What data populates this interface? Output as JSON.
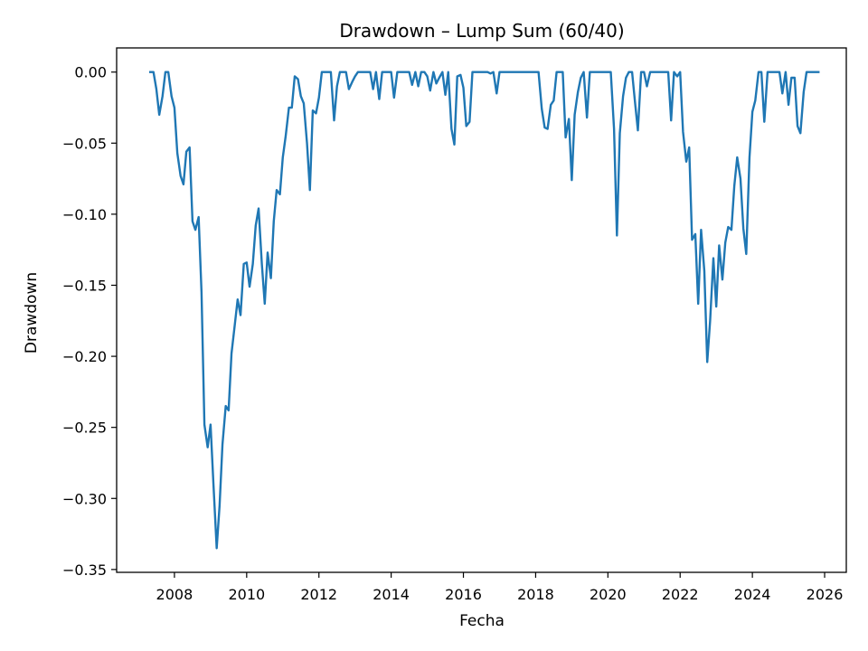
{
  "chart_data": {
    "type": "line",
    "title": "Drawdown – Lump Sum (60/40)",
    "xlabel": "Fecha",
    "ylabel": "Drawdown",
    "xlim": [
      2006.4,
      2026.6
    ],
    "ylim": [
      -0.352,
      0.017
    ],
    "xticks": [
      2008,
      2010,
      2012,
      2014,
      2016,
      2018,
      2020,
      2022,
      2024,
      2026
    ],
    "yticks": [
      0.0,
      -0.05,
      -0.1,
      -0.15,
      -0.2,
      -0.25,
      -0.3,
      -0.35
    ],
    "ytick_labels": [
      "0.00",
      "−0.05",
      "−0.10",
      "−0.15",
      "−0.20",
      "−0.25",
      "−0.30",
      "−0.35"
    ],
    "grid": false,
    "series": [
      {
        "color": "#1f77b4",
        "points": [
          [
            2007.33,
            0.0
          ],
          [
            2007.42,
            0.0
          ],
          [
            2007.5,
            -0.012
          ],
          [
            2007.58,
            -0.03
          ],
          [
            2007.67,
            -0.017
          ],
          [
            2007.75,
            0.0
          ],
          [
            2007.83,
            0.0
          ],
          [
            2007.92,
            -0.017
          ],
          [
            2008.0,
            -0.025
          ],
          [
            2008.08,
            -0.057
          ],
          [
            2008.17,
            -0.073
          ],
          [
            2008.25,
            -0.079
          ],
          [
            2008.33,
            -0.056
          ],
          [
            2008.42,
            -0.053
          ],
          [
            2008.5,
            -0.105
          ],
          [
            2008.58,
            -0.111
          ],
          [
            2008.67,
            -0.102
          ],
          [
            2008.75,
            -0.155
          ],
          [
            2008.83,
            -0.248
          ],
          [
            2008.92,
            -0.264
          ],
          [
            2009.0,
            -0.248
          ],
          [
            2009.08,
            -0.29
          ],
          [
            2009.17,
            -0.335
          ],
          [
            2009.25,
            -0.305
          ],
          [
            2009.33,
            -0.262
          ],
          [
            2009.42,
            -0.235
          ],
          [
            2009.5,
            -0.238
          ],
          [
            2009.58,
            -0.198
          ],
          [
            2009.67,
            -0.178
          ],
          [
            2009.75,
            -0.16
          ],
          [
            2009.83,
            -0.171
          ],
          [
            2009.92,
            -0.135
          ],
          [
            2010.0,
            -0.134
          ],
          [
            2010.08,
            -0.151
          ],
          [
            2010.17,
            -0.135
          ],
          [
            2010.25,
            -0.108
          ],
          [
            2010.33,
            -0.096
          ],
          [
            2010.42,
            -0.135
          ],
          [
            2010.5,
            -0.163
          ],
          [
            2010.58,
            -0.127
          ],
          [
            2010.67,
            -0.145
          ],
          [
            2010.75,
            -0.105
          ],
          [
            2010.83,
            -0.083
          ],
          [
            2010.92,
            -0.086
          ],
          [
            2011.0,
            -0.06
          ],
          [
            2011.08,
            -0.045
          ],
          [
            2011.17,
            -0.025
          ],
          [
            2011.25,
            -0.025
          ],
          [
            2011.33,
            -0.003
          ],
          [
            2011.42,
            -0.005
          ],
          [
            2011.5,
            -0.017
          ],
          [
            2011.58,
            -0.022
          ],
          [
            2011.67,
            -0.05
          ],
          [
            2011.75,
            -0.083
          ],
          [
            2011.83,
            -0.027
          ],
          [
            2011.92,
            -0.029
          ],
          [
            2012.0,
            -0.018
          ],
          [
            2012.08,
            0.0
          ],
          [
            2012.17,
            0.0
          ],
          [
            2012.25,
            0.0
          ],
          [
            2012.33,
            0.0
          ],
          [
            2012.42,
            -0.034
          ],
          [
            2012.5,
            -0.01
          ],
          [
            2012.58,
            0.0
          ],
          [
            2012.67,
            0.0
          ],
          [
            2012.75,
            0.0
          ],
          [
            2012.83,
            -0.012
          ],
          [
            2012.92,
            -0.007
          ],
          [
            2013.0,
            -0.003
          ],
          [
            2013.08,
            0.0
          ],
          [
            2013.25,
            0.0
          ],
          [
            2013.42,
            0.0
          ],
          [
            2013.5,
            -0.012
          ],
          [
            2013.58,
            0.0
          ],
          [
            2013.67,
            -0.019
          ],
          [
            2013.75,
            0.0
          ],
          [
            2013.83,
            0.0
          ],
          [
            2014.0,
            0.0
          ],
          [
            2014.08,
            -0.018
          ],
          [
            2014.17,
            0.0
          ],
          [
            2014.33,
            0.0
          ],
          [
            2014.5,
            0.0
          ],
          [
            2014.58,
            -0.009
          ],
          [
            2014.67,
            0.0
          ],
          [
            2014.75,
            -0.01
          ],
          [
            2014.83,
            0.0
          ],
          [
            2014.92,
            0.0
          ],
          [
            2015.0,
            -0.003
          ],
          [
            2015.08,
            -0.013
          ],
          [
            2015.17,
            0.0
          ],
          [
            2015.25,
            -0.008
          ],
          [
            2015.33,
            -0.004
          ],
          [
            2015.42,
            0.0
          ],
          [
            2015.5,
            -0.016
          ],
          [
            2015.58,
            0.0
          ],
          [
            2015.67,
            -0.04
          ],
          [
            2015.75,
            -0.051
          ],
          [
            2015.83,
            -0.003
          ],
          [
            2015.92,
            -0.002
          ],
          [
            2016.0,
            -0.011
          ],
          [
            2016.08,
            -0.038
          ],
          [
            2016.17,
            -0.035
          ],
          [
            2016.25,
            0.0
          ],
          [
            2016.33,
            0.0
          ],
          [
            2016.5,
            0.0
          ],
          [
            2016.67,
            0.0
          ],
          [
            2016.75,
            -0.001
          ],
          [
            2016.83,
            0.0
          ],
          [
            2016.92,
            -0.015
          ],
          [
            2017.0,
            0.0
          ],
          [
            2017.08,
            0.0
          ],
          [
            2017.25,
            0.0
          ],
          [
            2017.5,
            0.0
          ],
          [
            2017.75,
            0.0
          ],
          [
            2018.0,
            0.0
          ],
          [
            2018.08,
            0.0
          ],
          [
            2018.17,
            -0.026
          ],
          [
            2018.25,
            -0.039
          ],
          [
            2018.33,
            -0.04
          ],
          [
            2018.42,
            -0.023
          ],
          [
            2018.5,
            -0.02
          ],
          [
            2018.58,
            0.0
          ],
          [
            2018.67,
            0.0
          ],
          [
            2018.75,
            0.0
          ],
          [
            2018.83,
            -0.046
          ],
          [
            2018.92,
            -0.033
          ],
          [
            2019.0,
            -0.076
          ],
          [
            2019.08,
            -0.03
          ],
          [
            2019.17,
            -0.014
          ],
          [
            2019.25,
            -0.004
          ],
          [
            2019.33,
            0.0
          ],
          [
            2019.42,
            -0.032
          ],
          [
            2019.5,
            0.0
          ],
          [
            2019.58,
            0.0
          ],
          [
            2019.75,
            0.0
          ],
          [
            2019.92,
            0.0
          ],
          [
            2020.0,
            0.0
          ],
          [
            2020.08,
            0.0
          ],
          [
            2020.17,
            -0.04
          ],
          [
            2020.25,
            -0.115
          ],
          [
            2020.33,
            -0.043
          ],
          [
            2020.42,
            -0.017
          ],
          [
            2020.5,
            -0.004
          ],
          [
            2020.58,
            0.0
          ],
          [
            2020.67,
            0.0
          ],
          [
            2020.75,
            -0.021
          ],
          [
            2020.83,
            -0.041
          ],
          [
            2020.92,
            0.0
          ],
          [
            2021.0,
            0.0
          ],
          [
            2021.08,
            -0.01
          ],
          [
            2021.17,
            0.0
          ],
          [
            2021.25,
            0.0
          ],
          [
            2021.42,
            0.0
          ],
          [
            2021.58,
            0.0
          ],
          [
            2021.67,
            0.0
          ],
          [
            2021.75,
            -0.034
          ],
          [
            2021.83,
            0.0
          ],
          [
            2021.92,
            -0.003
          ],
          [
            2022.0,
            0.0
          ],
          [
            2022.08,
            -0.042
          ],
          [
            2022.17,
            -0.063
          ],
          [
            2022.25,
            -0.053
          ],
          [
            2022.33,
            -0.118
          ],
          [
            2022.42,
            -0.114
          ],
          [
            2022.5,
            -0.163
          ],
          [
            2022.58,
            -0.111
          ],
          [
            2022.67,
            -0.14
          ],
          [
            2022.75,
            -0.204
          ],
          [
            2022.83,
            -0.175
          ],
          [
            2022.92,
            -0.131
          ],
          [
            2023.0,
            -0.165
          ],
          [
            2023.08,
            -0.122
          ],
          [
            2023.17,
            -0.146
          ],
          [
            2023.25,
            -0.12
          ],
          [
            2023.33,
            -0.109
          ],
          [
            2023.42,
            -0.111
          ],
          [
            2023.5,
            -0.08
          ],
          [
            2023.58,
            -0.06
          ],
          [
            2023.67,
            -0.075
          ],
          [
            2023.75,
            -0.11
          ],
          [
            2023.83,
            -0.128
          ],
          [
            2023.92,
            -0.06
          ],
          [
            2024.0,
            -0.028
          ],
          [
            2024.08,
            -0.02
          ],
          [
            2024.17,
            0.0
          ],
          [
            2024.25,
            0.0
          ],
          [
            2024.33,
            -0.035
          ],
          [
            2024.42,
            0.0
          ],
          [
            2024.5,
            0.0
          ],
          [
            2024.67,
            0.0
          ],
          [
            2024.75,
            0.0
          ],
          [
            2024.83,
            -0.015
          ],
          [
            2024.92,
            0.0
          ],
          [
            2025.0,
            -0.023
          ],
          [
            2025.08,
            -0.004
          ],
          [
            2025.17,
            -0.004
          ],
          [
            2025.25,
            -0.038
          ],
          [
            2025.33,
            -0.043
          ],
          [
            2025.42,
            -0.014
          ],
          [
            2025.5,
            0.0
          ],
          [
            2025.58,
            0.0
          ],
          [
            2025.75,
            0.0
          ],
          [
            2025.83,
            0.0
          ]
        ]
      }
    ]
  }
}
